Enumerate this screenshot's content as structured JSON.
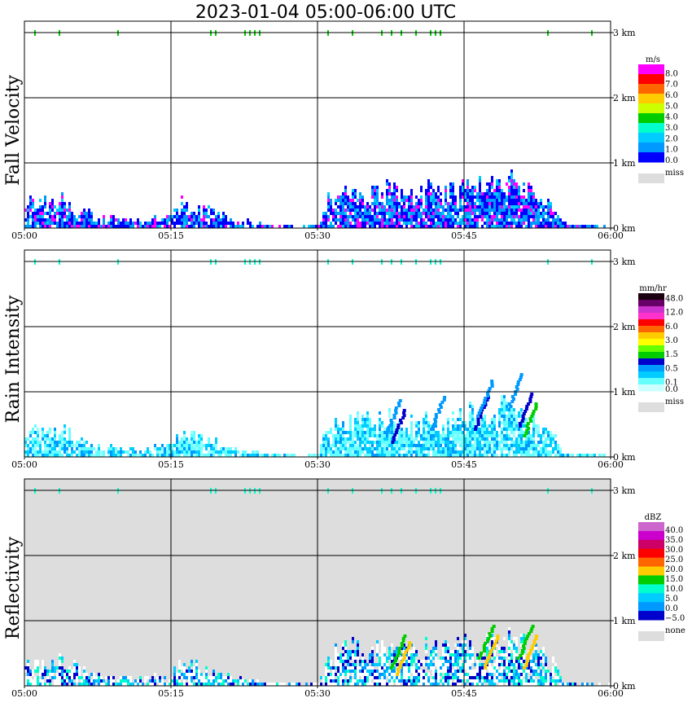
{
  "chart_title": "2023-01-04   05:00-06:00 UTC",
  "chart_data": [
    {
      "type": "heatmap",
      "title": "Fall Velocity",
      "x_ticks": [
        "05:00",
        "05:15",
        "05:30",
        "05:45",
        "06:00"
      ],
      "y_ticks": [
        "0 km",
        "1 km",
        "2 km",
        "3 km"
      ],
      "ylim_km": [
        0,
        3
      ],
      "legend": {
        "unit": "m/s",
        "labels": [
          "8.0",
          "7.0",
          "6.0",
          "5.0",
          "4.0",
          "3.0",
          "2.0",
          "1.0",
          "0.0"
        ],
        "colors": [
          "#ff00ff",
          "#ff0000",
          "#ff6600",
          "#ffcc00",
          "#ccff00",
          "#00cc00",
          "#00ffcc",
          "#00ccff",
          "#0099ff",
          "#0000ff"
        ],
        "miss_label": "miss",
        "miss_color": "#dddddd"
      },
      "background": "#ffffff",
      "echo": {
        "profile": [
          [
            0,
            0.45
          ],
          [
            2,
            0.45
          ],
          [
            4,
            0.5
          ],
          [
            6,
            0.3
          ],
          [
            8,
            0.2
          ],
          [
            10,
            0.18
          ],
          [
            12,
            0.15
          ],
          [
            15,
            0.25
          ],
          [
            16,
            0.45
          ],
          [
            18,
            0.35
          ],
          [
            20,
            0.25
          ],
          [
            22,
            0.15
          ],
          [
            24,
            0.1
          ],
          [
            26,
            0.08
          ],
          [
            28,
            0.05
          ],
          [
            30,
            0.1
          ],
          [
            31,
            0.55
          ],
          [
            33,
            0.7
          ],
          [
            35,
            0.65
          ],
          [
            37,
            0.7
          ],
          [
            39,
            0.65
          ],
          [
            40,
            0.55
          ],
          [
            41,
            0.75
          ],
          [
            43,
            0.65
          ],
          [
            45,
            0.8
          ],
          [
            47,
            0.7
          ],
          [
            49,
            0.9
          ],
          [
            51,
            0.75
          ],
          [
            53,
            0.6
          ],
          [
            54,
            0.45
          ],
          [
            55,
            0.1
          ],
          [
            58,
            0.08
          ],
          [
            60,
            0.05
          ]
        ],
        "colors": [
          "#0000ff",
          "#0000ff",
          "#0000ff",
          "#0099ff",
          "#0099ff",
          "#00ccff",
          "#ff00ff"
        ],
        "seed": 7
      },
      "top_markers": [
        1,
        3.5,
        9.5,
        19,
        19.5,
        22.5,
        23,
        23.5,
        24,
        31,
        33.5,
        36.5,
        37.5,
        38.5,
        40,
        41.5,
        42,
        42.5,
        53.5,
        58
      ]
    },
    {
      "type": "heatmap",
      "title": "Rain Intensity",
      "x_ticks": [
        "05:00",
        "05:15",
        "05:30",
        "05:45",
        "06:00"
      ],
      "y_ticks": [
        "0 km",
        "1 km",
        "2 km",
        "3 km"
      ],
      "ylim_km": [
        0,
        3
      ],
      "legend": {
        "unit": "mm/hr",
        "labels": [
          "48.0",
          "",
          "12.0",
          "",
          "6.0",
          "",
          "3.0",
          "",
          "1.5",
          "",
          "0.5",
          "",
          "0.1",
          "0.0"
        ],
        "colors": [
          "#1a0010",
          "#660066",
          "#cc33cc",
          "#ff33cc",
          "#ff0000",
          "#ff6600",
          "#ffcc00",
          "#ffff00",
          "#66ff00",
          "#00cc00",
          "#0000cc",
          "#0099ff",
          "#00ccff",
          "#66ffff",
          "#ccffff"
        ],
        "miss_label": "miss",
        "miss_color": "#dddddd"
      },
      "background": "#ffffff",
      "echo": {
        "profile": [
          [
            0,
            0.45
          ],
          [
            2,
            0.45
          ],
          [
            4,
            0.5
          ],
          [
            6,
            0.3
          ],
          [
            8,
            0.2
          ],
          [
            10,
            0.18
          ],
          [
            12,
            0.15
          ],
          [
            15,
            0.25
          ],
          [
            16,
            0.45
          ],
          [
            18,
            0.35
          ],
          [
            20,
            0.25
          ],
          [
            22,
            0.15
          ],
          [
            24,
            0.1
          ],
          [
            26,
            0.08
          ],
          [
            28,
            0.05
          ],
          [
            30,
            0.1
          ],
          [
            31,
            0.55
          ],
          [
            33,
            0.7
          ],
          [
            35,
            0.65
          ],
          [
            37,
            0.7
          ],
          [
            39,
            0.65
          ],
          [
            40,
            0.55
          ],
          [
            41,
            0.75
          ],
          [
            43,
            0.65
          ],
          [
            45,
            0.8
          ],
          [
            47,
            0.7
          ],
          [
            49,
            0.9
          ],
          [
            51,
            0.75
          ],
          [
            53,
            0.6
          ],
          [
            54,
            0.45
          ],
          [
            55,
            0.1
          ],
          [
            58,
            0.08
          ],
          [
            60,
            0.05
          ]
        ],
        "colors": [
          "#66ffff",
          "#66ffff",
          "#66ffff",
          "#99ffff",
          "#00ccff",
          "#00ccff",
          "#0099ff"
        ],
        "seed": 11,
        "cores": [
          {
            "t": 37.5,
            "h": 0.25,
            "c": "#0000cc"
          },
          {
            "t": 37.0,
            "h": 0.4,
            "c": "#0099ff"
          },
          {
            "t": 41.5,
            "h": 0.45,
            "c": "#0099ff"
          },
          {
            "t": 46.0,
            "h": 0.45,
            "c": "#0000cc"
          },
          {
            "t": 46.5,
            "h": 0.7,
            "c": "#0099ff"
          },
          {
            "t": 51.0,
            "h": 0.35,
            "c": "#00cc00"
          },
          {
            "t": 50.5,
            "h": 0.5,
            "c": "#0000cc"
          },
          {
            "t": 49.5,
            "h": 0.8,
            "c": "#0099ff"
          }
        ]
      },
      "top_markers": [
        1,
        3.5,
        9.5,
        19,
        19.5,
        22.5,
        23,
        23.5,
        24,
        31,
        33.5,
        36.5,
        37.5,
        38.5,
        40,
        41.5,
        42,
        42.5,
        53.5,
        58
      ]
    },
    {
      "type": "heatmap",
      "title": "Reflectivity",
      "x_ticks": [
        "05:00",
        "05:15",
        "05:30",
        "05:45",
        "06:00"
      ],
      "y_ticks": [
        "0 km",
        "1 km",
        "2 km",
        "3 km"
      ],
      "ylim_km": [
        0,
        3
      ],
      "legend": {
        "unit": "dBZ",
        "labels": [
          "40.0",
          "35.0",
          "30.0",
          "25.0",
          "20.0",
          "15.0",
          "10.0",
          "5.0",
          "0.0",
          "−5.0"
        ],
        "colors": [
          "#cc66cc",
          "#cc00cc",
          "#cc0066",
          "#ff0000",
          "#ff6600",
          "#ffcc00",
          "#00cc00",
          "#00ffcc",
          "#00ccff",
          "#0099ff",
          "#0000cc"
        ],
        "miss_label": "none",
        "miss_color": "#dddddd"
      },
      "background": "#dddddd",
      "echo": {
        "profile": [
          [
            0,
            0.45
          ],
          [
            2,
            0.45
          ],
          [
            4,
            0.5
          ],
          [
            6,
            0.3
          ],
          [
            8,
            0.2
          ],
          [
            10,
            0.18
          ],
          [
            12,
            0.15
          ],
          [
            15,
            0.25
          ],
          [
            16,
            0.45
          ],
          [
            18,
            0.35
          ],
          [
            20,
            0.25
          ],
          [
            22,
            0.15
          ],
          [
            24,
            0.1
          ],
          [
            26,
            0.08
          ],
          [
            28,
            0.05
          ],
          [
            30,
            0.1
          ],
          [
            31,
            0.55
          ],
          [
            33,
            0.7
          ],
          [
            35,
            0.65
          ],
          [
            37,
            0.7
          ],
          [
            39,
            0.65
          ],
          [
            40,
            0.55
          ],
          [
            41,
            0.75
          ],
          [
            43,
            0.65
          ],
          [
            45,
            0.8
          ],
          [
            47,
            0.7
          ],
          [
            49,
            0.9
          ],
          [
            51,
            0.75
          ],
          [
            53,
            0.6
          ],
          [
            54,
            0.45
          ],
          [
            55,
            0.1
          ],
          [
            58,
            0.08
          ],
          [
            60,
            0.05
          ]
        ],
        "colors": [
          "#ffffff",
          "#ffffff",
          "#ffffff",
          "#0000cc",
          "#0099ff",
          "#00ccff",
          "#00ffcc"
        ],
        "seed": 5,
        "cores": [
          {
            "t": 37.5,
            "h": 0.3,
            "c": "#00cc00"
          },
          {
            "t": 38.0,
            "h": 0.2,
            "c": "#ffcc00"
          },
          {
            "t": 46.5,
            "h": 0.45,
            "c": "#00cc00"
          },
          {
            "t": 47.0,
            "h": 0.3,
            "c": "#ffcc00"
          },
          {
            "t": 50.5,
            "h": 0.45,
            "c": "#00cc00"
          },
          {
            "t": 51.0,
            "h": 0.3,
            "c": "#ffcc00"
          }
        ]
      },
      "top_markers": [
        1,
        3.5,
        9.5,
        19,
        19.5,
        22.5,
        23,
        23.5,
        24,
        31,
        33.5,
        36.5,
        37.5,
        38.5,
        40,
        41.5,
        42,
        42.5,
        53.5,
        58
      ]
    }
  ]
}
